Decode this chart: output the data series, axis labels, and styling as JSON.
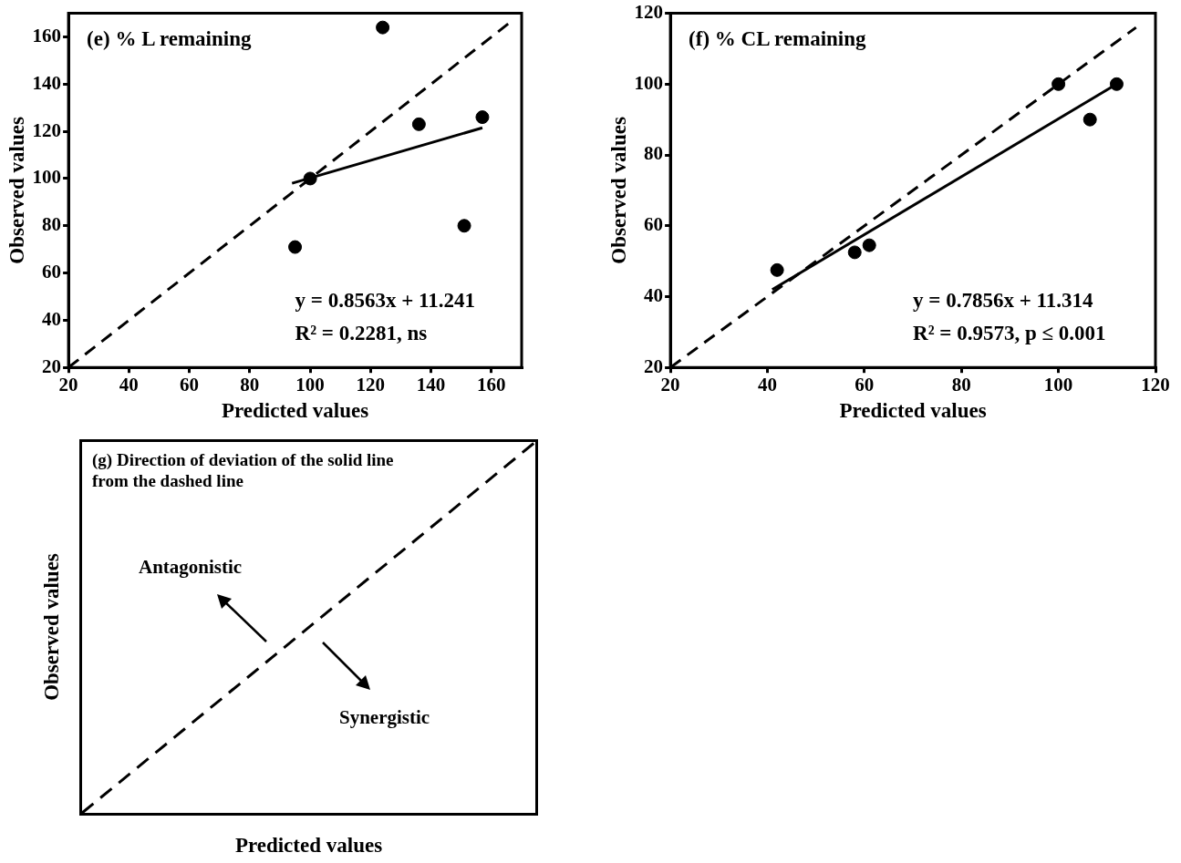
{
  "chart_data": [
    {
      "type": "scatter",
      "title": "(e) % L remaining",
      "xlabel": "Predicted values",
      "ylabel": "Observed values",
      "xlim": [
        20,
        170
      ],
      "ylim": [
        20,
        170
      ],
      "xticks": [
        20,
        40,
        60,
        80,
        100,
        120,
        140,
        160
      ],
      "yticks": [
        20,
        40,
        60,
        80,
        100,
        120,
        140,
        160
      ],
      "grid": false,
      "annotations": [
        "y = 0.8563x + 11.241",
        "R² = 0.2281, ns"
      ],
      "series": [
        {
          "type": "scatter",
          "color": "#000000",
          "marker": "circle",
          "x": [
            95,
            100,
            124,
            136,
            151,
            157
          ],
          "values": [
            71,
            100,
            164,
            123,
            80,
            126
          ]
        },
        {
          "type": "line",
          "color": "#000000",
          "line_style": "solid",
          "marker": "none",
          "x": [
            94,
            157
          ],
          "values": [
            98,
            121.5
          ]
        },
        {
          "type": "line",
          "color": "#000000",
          "line_style": "dashed",
          "marker": "none",
          "x": [
            20,
            166
          ],
          "values": [
            20,
            166
          ]
        }
      ]
    },
    {
      "type": "scatter",
      "title": "(f) % CL remaining",
      "xlabel": "Predicted values",
      "ylabel": "Observed values",
      "xlim": [
        20,
        120
      ],
      "ylim": [
        20,
        120
      ],
      "xticks": [
        20,
        40,
        60,
        80,
        100,
        120
      ],
      "yticks": [
        20,
        40,
        60,
        80,
        100,
        120
      ],
      "grid": false,
      "annotations": [
        "y = 0.7856x + 11.314",
        "R² = 0.9573, p ≤ 0.001"
      ],
      "series": [
        {
          "type": "scatter",
          "color": "#000000",
          "marker": "circle",
          "x": [
            42,
            58,
            61,
            100,
            106.5,
            112
          ],
          "values": [
            47.5,
            52.5,
            54.5,
            100,
            90,
            100
          ]
        },
        {
          "type": "line",
          "color": "#000000",
          "line_style": "solid",
          "marker": "none",
          "x": [
            41,
            112
          ],
          "values": [
            42,
            100
          ]
        },
        {
          "type": "line",
          "color": "#000000",
          "line_style": "dashed",
          "marker": "none",
          "x": [
            20,
            116
          ],
          "values": [
            20,
            116
          ]
        }
      ]
    },
    {
      "type": "other",
      "title": "(g) Direction of deviation of the solid line from the dashed line",
      "xlabel": "Predicted values",
      "ylabel": "Observed values",
      "annotations": [
        "Antagonistic",
        "Synergistic"
      ]
    }
  ]
}
